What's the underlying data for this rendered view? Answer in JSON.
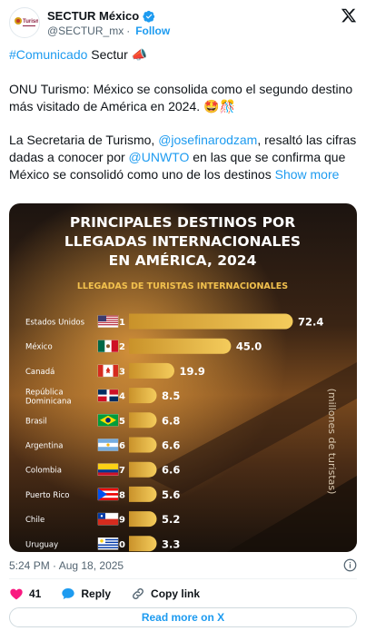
{
  "account": {
    "name": "SECTUR México",
    "handle": "@SECTUR_mx",
    "separator": "·",
    "follow_label": "Follow",
    "avatar_text": "Turismo"
  },
  "post": {
    "hashtag": "#Comunicado",
    "hashtag_rest": " Sectur 📣",
    "paragraph1": "ONU Turismo: México se consolida como el segundo destino más visitado de América en 2024. 🤩🎊",
    "p2_part1": "La Secretaria de Turismo, ",
    "p2_mention1": "@josefinarodzam",
    "p2_part2": ", resaltó las cifras dadas a conocer por ",
    "p2_mention2": "@UNWTO",
    "p2_part3": " en las que se confirma que México se consolidó como uno de los destinos ",
    "show_more": "Show more",
    "timestamp": "5:24 PM · Aug 18, 2025"
  },
  "actions": {
    "likes": "41",
    "reply_label": "Reply",
    "copy_label": "Copy link",
    "read_more": "Read more on X"
  },
  "colors": {
    "accent": "#1d9bf0",
    "like": "#f91880",
    "bar_gold": "#f2c14e"
  },
  "chart_data": {
    "type": "bar",
    "title_lines": [
      "PRINCIPALES DESTINOS POR",
      "LLEGADAS INTERNACIONALES",
      "EN AMÉRICA, 2024"
    ],
    "subtitle": "LLEGADAS DE TURISTAS INTERNACIONALES",
    "ylabel": "(millones de turistas)",
    "categories": [
      "Estados Unidos",
      "México",
      "Canadá",
      "República Dominicana",
      "Brasil",
      "Argentina",
      "Colombia",
      "Puerto Rico",
      "Chile",
      "Uruguay"
    ],
    "ranks": [
      "1",
      "2",
      "3",
      "4",
      "5",
      "6",
      "7",
      "8",
      "9",
      "10"
    ],
    "values": [
      72.4,
      45.0,
      19.9,
      8.5,
      6.8,
      6.6,
      6.6,
      5.6,
      5.2,
      3.3
    ],
    "value_labels": [
      "72.4",
      "45.0",
      "19.9",
      "8.5",
      "6.8",
      "6.6",
      "6.6",
      "5.6",
      "5.2",
      "3.3"
    ],
    "flags": [
      "us-flag-icon",
      "mx-flag-icon",
      "ca-flag-icon",
      "do-flag-icon",
      "br-flag-icon",
      "ar-flag-icon",
      "co-flag-icon",
      "pr-flag-icon",
      "cl-flag-icon",
      "uy-flag-icon"
    ]
  }
}
